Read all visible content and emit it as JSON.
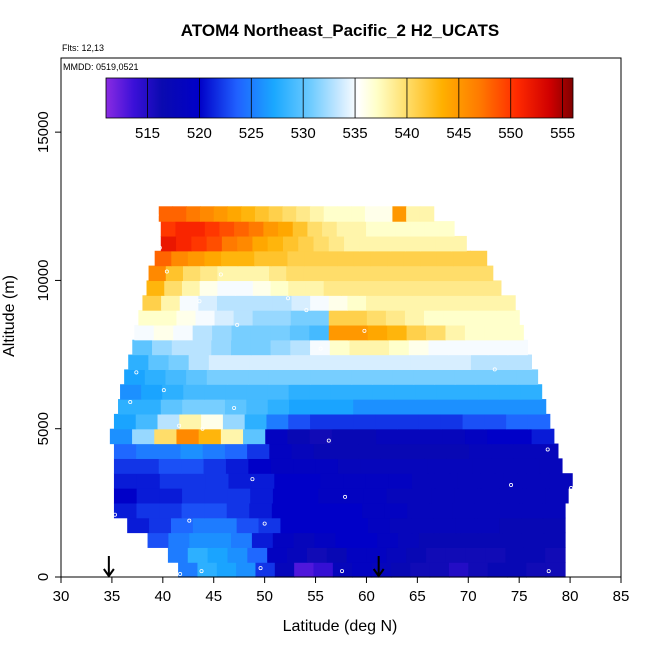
{
  "chart_data": {
    "type": "heatmap",
    "title": "ATOM4 Northeast_Pacific_2 H2_UCATS",
    "flights_label": "Flts: 12,13",
    "date_label": "MMDD: 0519,0521",
    "xlabel": "Latitude (deg N)",
    "ylabel": "Altitude (m)",
    "xlim": [
      30,
      85
    ],
    "ylim": [
      0,
      17500
    ],
    "x_ticks": [
      30,
      35,
      40,
      45,
      50,
      55,
      60,
      65,
      70,
      75,
      80,
      85
    ],
    "y_ticks": [
      0,
      5000,
      10000,
      15000
    ],
    "colorbar": {
      "min": 511,
      "max": 556,
      "ticks": [
        515,
        520,
        525,
        530,
        535,
        540,
        545,
        550,
        555
      ],
      "placement": "top"
    },
    "arrow_latitudes": [
      34.7,
      61.2
    ],
    "altitude_bands": [
      {
        "alt": 250,
        "lat_min": 41.5,
        "lat_max": 79.5,
        "h2": [
          525,
          528,
          527,
          526,
          522,
          518,
          513,
          514,
          518,
          519,
          518,
          517,
          516,
          516,
          515,
          516,
          517,
          517,
          516,
          516
        ]
      },
      {
        "alt": 750,
        "lat_min": 40.5,
        "lat_max": 79.5,
        "h2": [
          525,
          528,
          527,
          526,
          524,
          519,
          518,
          516,
          517,
          519,
          519,
          518,
          517,
          516,
          516,
          516,
          516,
          517,
          517,
          516
        ]
      },
      {
        "alt": 1250,
        "lat_min": 38.5,
        "lat_max": 79.5,
        "h2": [
          523,
          525,
          526,
          526,
          525,
          521,
          519,
          518,
          519,
          520,
          520,
          519,
          518,
          517,
          517,
          517,
          517,
          517,
          517,
          517
        ]
      },
      {
        "alt": 1750,
        "lat_min": 36.5,
        "lat_max": 79.5,
        "h2": [
          521,
          522,
          524,
          525,
          525,
          523,
          522,
          520,
          520,
          520,
          520,
          519,
          518,
          518,
          518,
          518,
          518,
          517,
          517,
          517
        ]
      },
      {
        "alt": 2250,
        "lat_min": 35.2,
        "lat_max": 79.5,
        "h2": [
          521,
          522,
          522,
          523,
          523,
          522,
          521,
          520,
          520,
          520,
          520,
          519,
          519,
          518,
          518,
          518,
          518,
          518,
          518,
          518
        ]
      },
      {
        "alt": 2750,
        "lat_min": 35.2,
        "lat_max": 79.8,
        "h2": [
          520,
          521,
          521,
          522,
          522,
          522,
          521,
          520,
          520,
          519,
          519,
          519,
          518,
          518,
          518,
          518,
          518,
          518,
          518,
          518
        ]
      },
      {
        "alt": 3250,
        "lat_min": 35.2,
        "lat_max": 80.2,
        "h2": [
          521,
          521,
          522,
          522,
          522,
          521,
          521,
          520,
          520,
          519,
          519,
          519,
          519,
          518,
          518,
          518,
          518,
          518,
          518,
          518
        ]
      },
      {
        "alt": 3750,
        "lat_min": 35.2,
        "lat_max": 79.2,
        "h2": [
          522,
          522,
          523,
          523,
          522,
          521,
          520,
          519,
          519,
          519,
          518,
          518,
          518,
          518,
          518,
          518,
          518,
          518,
          518,
          518
        ]
      },
      {
        "alt": 4250,
        "lat_min": 35.2,
        "lat_max": 78.8,
        "h2": [
          524,
          525,
          525,
          526,
          525,
          524,
          522,
          519,
          518,
          517,
          517,
          517,
          517,
          517,
          517,
          517,
          518,
          518,
          518,
          518
        ]
      },
      {
        "alt": 4750,
        "lat_min": 34.8,
        "lat_max": 78.4,
        "h2": [
          526,
          532,
          540,
          546,
          543,
          538,
          530,
          519,
          517,
          516,
          517,
          517,
          518,
          518,
          518,
          518,
          519,
          520,
          520,
          521
        ]
      },
      {
        "alt": 5250,
        "lat_min": 35.2,
        "lat_max": 78.0,
        "h2": [
          527,
          529,
          533,
          538,
          536,
          532,
          528,
          525,
          523,
          522,
          522,
          522,
          522,
          522,
          522,
          522,
          523,
          523,
          524,
          524
        ]
      },
      {
        "alt": 5750,
        "lat_min": 35.6,
        "lat_max": 77.6,
        "h2": [
          528,
          528,
          530,
          531,
          531,
          530,
          529,
          528,
          527,
          527,
          527,
          526,
          526,
          526,
          526,
          526,
          526,
          526,
          526,
          526
        ]
      },
      {
        "alt": 6250,
        "lat_min": 35.8,
        "lat_max": 77.2,
        "h2": [
          526,
          527,
          528,
          529,
          529,
          529,
          529,
          529,
          528,
          528,
          528,
          528,
          528,
          528,
          528,
          528,
          528,
          528,
          528,
          528
        ]
      },
      {
        "alt": 6750,
        "lat_min": 36.2,
        "lat_max": 76.8,
        "h2": [
          527,
          528,
          529,
          530,
          531,
          531,
          531,
          531,
          531,
          531,
          531,
          531,
          531,
          531,
          531,
          531,
          531,
          531,
          531,
          531
        ]
      },
      {
        "alt": 7250,
        "lat_min": 36.6,
        "lat_max": 76.2,
        "h2": [
          528,
          530,
          531,
          533,
          534,
          534,
          534,
          534,
          534,
          534,
          534,
          534,
          534,
          534,
          534,
          534,
          534,
          533,
          533,
          533
        ]
      },
      {
        "alt": 7750,
        "lat_min": 37.0,
        "lat_max": 75.8,
        "h2": [
          530,
          532,
          533,
          533,
          532,
          531,
          531,
          532,
          533,
          535,
          537,
          538,
          538,
          537,
          536,
          535,
          535,
          535,
          535,
          535
        ]
      },
      {
        "alt": 8250,
        "lat_min": 37.2,
        "lat_max": 75.4,
        "h2": [
          535,
          536,
          535,
          533,
          532,
          531,
          531,
          531,
          530,
          529,
          545,
          545,
          544,
          543,
          541,
          540,
          538,
          537,
          537,
          537
        ]
      },
      {
        "alt": 8750,
        "lat_min": 37.6,
        "lat_max": 75.0,
        "h2": [
          537,
          537,
          536,
          535,
          534,
          533,
          532,
          532,
          531,
          531,
          541,
          541,
          540,
          539,
          538,
          537,
          537,
          537,
          537,
          537
        ]
      },
      {
        "alt": 9250,
        "lat_min": 38.0,
        "lat_max": 74.6,
        "h2": [
          541,
          538,
          535,
          534,
          533,
          533,
          533,
          533,
          534,
          535,
          536,
          537,
          538,
          538,
          538,
          538,
          538,
          538,
          538,
          538
        ]
      },
      {
        "alt": 9750,
        "lat_min": 38.4,
        "lat_max": 73.2,
        "h2": [
          543,
          540,
          538,
          536,
          535,
          535,
          536,
          537,
          538,
          538,
          539,
          539,
          539,
          539,
          539,
          539,
          539,
          539,
          539,
          539
        ]
      },
      {
        "alt": 10250,
        "lat_min": 38.6,
        "lat_max": 72.4,
        "h2": [
          546,
          542,
          540,
          539,
          538,
          538,
          538,
          539,
          540,
          540,
          540,
          540,
          540,
          540,
          540,
          540,
          540,
          540,
          540,
          540
        ]
      },
      {
        "alt": 10750,
        "lat_min": 39.2,
        "lat_max": 71.8,
        "h2": [
          548,
          546,
          545,
          544,
          543,
          543,
          542,
          542,
          541,
          541,
          541,
          541,
          541,
          541,
          541,
          541,
          541,
          541,
          541,
          541
        ]
      },
      {
        "alt": 11250,
        "lat_min": 39.8,
        "lat_max": 69.8,
        "h2": [
          552,
          551,
          550,
          549,
          547,
          546,
          544,
          543,
          542,
          541,
          540,
          539,
          538,
          538,
          538,
          538,
          538,
          538,
          538,
          538
        ]
      },
      {
        "alt": 11750,
        "lat_min": 39.8,
        "lat_max": 68.6,
        "h2": [
          550,
          551,
          551,
          550,
          549,
          548,
          547,
          545,
          544,
          542,
          540,
          539,
          538,
          538,
          537,
          537,
          537,
          537,
          537,
          537
        ]
      },
      {
        "alt": 12250,
        "lat_min": 39.6,
        "lat_max": 66.6,
        "h2": [
          548,
          548,
          547,
          546,
          545,
          544,
          543,
          542,
          541,
          540,
          539,
          538,
          537,
          537,
          537,
          536,
          536,
          545,
          538,
          538
        ]
      }
    ],
    "sample_points": [
      [
        39.4,
        12200
      ],
      [
        39.7,
        11100
      ],
      [
        40.4,
        10300
      ],
      [
        45.7,
        10200
      ],
      [
        43.6,
        9300
      ],
      [
        52.3,
        9400
      ],
      [
        54.1,
        9000
      ],
      [
        47.3,
        8500
      ],
      [
        59.8,
        8300
      ],
      [
        55.5,
        7700
      ],
      [
        37.4,
        6900
      ],
      [
        72.6,
        7000
      ],
      [
        40.1,
        6300
      ],
      [
        36.8,
        5900
      ],
      [
        47.0,
        5700
      ],
      [
        41.6,
        5100
      ],
      [
        43.9,
        5000
      ],
      [
        56.3,
        4600
      ],
      [
        77.8,
        4300
      ],
      [
        48.8,
        3300
      ],
      [
        74.2,
        3100
      ],
      [
        80.1,
        3000
      ],
      [
        57.9,
        2700
      ],
      [
        35.3,
        2100
      ],
      [
        42.6,
        1900
      ],
      [
        50.0,
        1800
      ],
      [
        43.8,
        200
      ],
      [
        49.6,
        300
      ],
      [
        57.6,
        200
      ],
      [
        77.9,
        200
      ],
      [
        41.7,
        100
      ]
    ]
  }
}
